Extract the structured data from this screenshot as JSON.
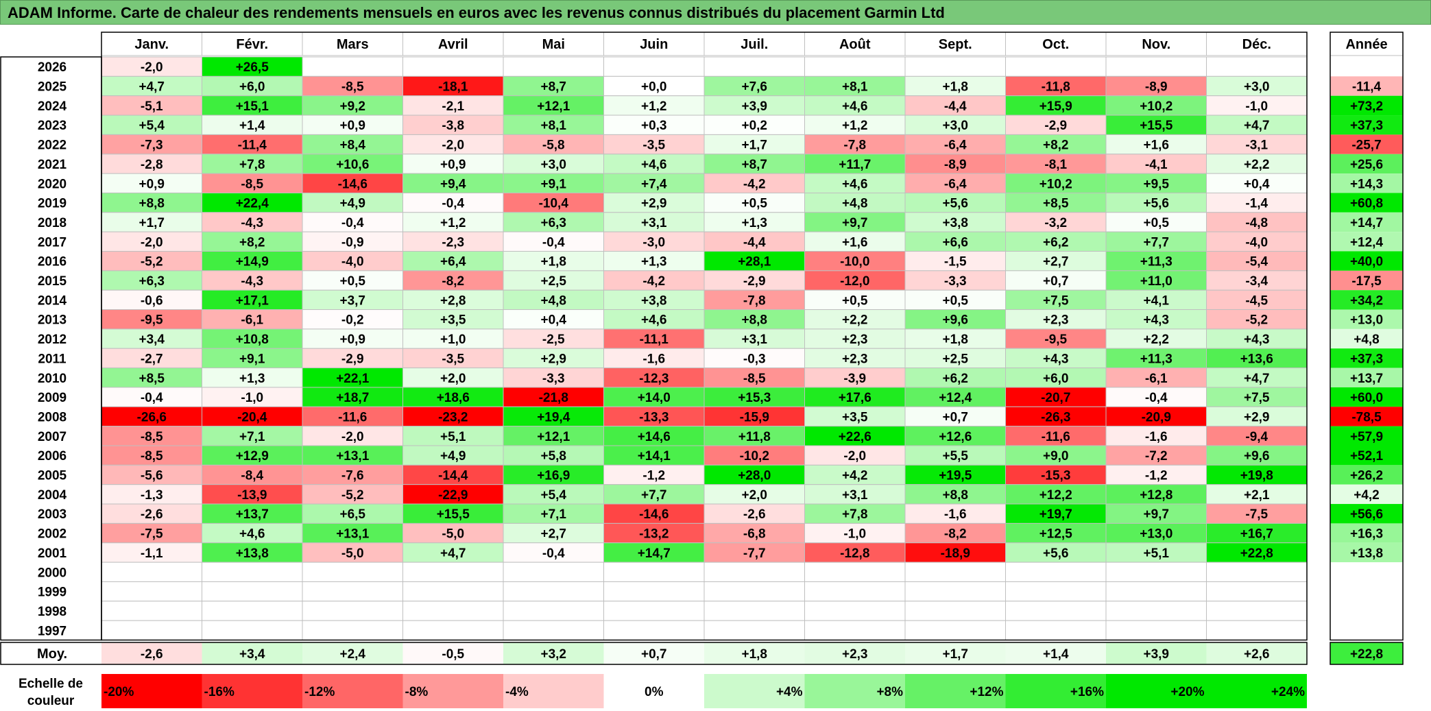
{
  "title": "ADAM Informe. Carte de chaleur des rendements mensuels en euros avec les revenus connus distribués du placement Garmin Ltd",
  "chart_data": {
    "type": "heatmap",
    "months": [
      "Janv.",
      "Févr.",
      "Mars",
      "Avril",
      "Mai",
      "Juin",
      "Juil.",
      "Août",
      "Sept.",
      "Oct.",
      "Nov.",
      "Déc."
    ],
    "year_column_label": "Année",
    "years": [
      "2026",
      "2025",
      "2024",
      "2023",
      "2022",
      "2021",
      "2020",
      "2019",
      "2018",
      "2017",
      "2016",
      "2015",
      "2014",
      "2013",
      "2012",
      "2011",
      "2010",
      "2009",
      "2008",
      "2007",
      "2006",
      "2005",
      "2004",
      "2003",
      "2002",
      "2001",
      "2000",
      "1999",
      "1998",
      "1997"
    ],
    "values": [
      [
        "-2,0",
        "+26,5",
        "",
        "",
        "",
        "",
        "",
        "",
        "",
        "",
        "",
        ""
      ],
      [
        "+4,7",
        "+6,0",
        "-8,5",
        "-18,1",
        "+8,7",
        "+0,0",
        "+7,6",
        "+8,1",
        "+1,8",
        "-11,8",
        "-8,9",
        "+3,0"
      ],
      [
        "-5,1",
        "+15,1",
        "+9,2",
        "-2,1",
        "+12,1",
        "+1,2",
        "+3,9",
        "+4,6",
        "-4,4",
        "+15,9",
        "+10,2",
        "-1,0"
      ],
      [
        "+5,4",
        "+1,4",
        "+0,9",
        "-3,8",
        "+8,1",
        "+0,3",
        "+0,2",
        "+1,2",
        "+3,0",
        "-2,9",
        "+15,5",
        "+4,7"
      ],
      [
        "-7,3",
        "-11,4",
        "+8,4",
        "-2,0",
        "-5,8",
        "-3,5",
        "+1,7",
        "-7,8",
        "-6,4",
        "+8,2",
        "+1,6",
        "-3,1"
      ],
      [
        "-2,8",
        "+7,8",
        "+10,6",
        "+0,9",
        "+3,0",
        "+4,6",
        "+8,7",
        "+11,7",
        "-8,9",
        "-8,1",
        "-4,1",
        "+2,2"
      ],
      [
        "+0,9",
        "-8,5",
        "-14,6",
        "+9,4",
        "+9,1",
        "+7,4",
        "-4,2",
        "+4,6",
        "-6,4",
        "+10,2",
        "+9,5",
        "+0,4"
      ],
      [
        "+8,8",
        "+22,4",
        "+4,9",
        "-0,4",
        "-10,4",
        "+2,9",
        "+0,5",
        "+4,8",
        "+5,6",
        "+8,5",
        "+5,6",
        "-1,4"
      ],
      [
        "+1,7",
        "-4,3",
        "-0,4",
        "+1,2",
        "+6,3",
        "+3,1",
        "+1,3",
        "+9,7",
        "+3,8",
        "-3,2",
        "+0,5",
        "-4,8"
      ],
      [
        "-2,0",
        "+8,2",
        "-0,9",
        "-2,3",
        "-0,4",
        "-3,0",
        "-4,4",
        "+1,6",
        "+6,6",
        "+6,2",
        "+7,7",
        "-4,0"
      ],
      [
        "-5,2",
        "+14,9",
        "-4,0",
        "+6,4",
        "+1,8",
        "+1,3",
        "+28,1",
        "-10,0",
        "-1,5",
        "+2,7",
        "+11,3",
        "-5,4"
      ],
      [
        "+6,3",
        "-4,3",
        "+0,5",
        "-8,2",
        "+2,5",
        "-4,2",
        "-2,9",
        "-12,0",
        "-3,3",
        "+0,7",
        "+11,0",
        "-3,4"
      ],
      [
        "-0,6",
        "+17,1",
        "+3,7",
        "+2,8",
        "+4,8",
        "+3,8",
        "-7,8",
        "+0,5",
        "+0,5",
        "+7,5",
        "+4,1",
        "-4,5"
      ],
      [
        "-9,5",
        "-6,1",
        "-0,2",
        "+3,5",
        "+0,4",
        "+4,6",
        "+8,8",
        "+2,2",
        "+9,6",
        "+2,3",
        "+4,3",
        "-5,2"
      ],
      [
        "+3,4",
        "+10,8",
        "+0,9",
        "+1,0",
        "-2,5",
        "-11,1",
        "+3,1",
        "+2,3",
        "+1,8",
        "-9,5",
        "+2,2",
        "+4,3"
      ],
      [
        "-2,7",
        "+9,1",
        "-2,9",
        "-3,5",
        "+2,9",
        "-1,6",
        "-0,3",
        "+2,3",
        "+2,5",
        "+4,3",
        "+11,3",
        "+13,6"
      ],
      [
        "+8,5",
        "+1,3",
        "+22,1",
        "+2,0",
        "-3,3",
        "-12,3",
        "-8,5",
        "-3,9",
        "+6,2",
        "+6,0",
        "-6,1",
        "+4,7"
      ],
      [
        "-0,4",
        "-1,0",
        "+18,7",
        "+18,6",
        "-21,8",
        "+14,0",
        "+15,3",
        "+17,6",
        "+12,4",
        "-20,7",
        "-0,4",
        "+7,5"
      ],
      [
        "-26,6",
        "-20,4",
        "-11,6",
        "-23,2",
        "+19,4",
        "-13,3",
        "-15,9",
        "+3,5",
        "+0,7",
        "-26,3",
        "-20,9",
        "+2,9"
      ],
      [
        "-8,5",
        "+7,1",
        "-2,0",
        "+5,1",
        "+12,1",
        "+14,6",
        "+11,8",
        "+22,6",
        "+12,6",
        "-11,6",
        "-1,6",
        "-9,4"
      ],
      [
        "-8,5",
        "+12,9",
        "+13,1",
        "+4,9",
        "+5,8",
        "+14,1",
        "-10,2",
        "-2,0",
        "+5,5",
        "+9,0",
        "-7,2",
        "+9,6"
      ],
      [
        "-5,6",
        "-8,4",
        "-7,6",
        "-14,4",
        "+16,9",
        "-1,2",
        "+28,0",
        "+4,2",
        "+19,5",
        "-15,3",
        "-1,2",
        "+19,8"
      ],
      [
        "-1,3",
        "-13,9",
        "-5,2",
        "-22,9",
        "+5,4",
        "+7,7",
        "+2,0",
        "+3,1",
        "+8,8",
        "+12,2",
        "+12,8",
        "+2,1"
      ],
      [
        "-2,6",
        "+13,7",
        "+6,5",
        "+15,5",
        "+7,1",
        "-14,6",
        "-2,6",
        "+7,8",
        "-1,6",
        "+19,7",
        "+9,7",
        "-7,5"
      ],
      [
        "-7,5",
        "+4,6",
        "+13,1",
        "-5,0",
        "+2,7",
        "-13,2",
        "-6,8",
        "-1,0",
        "-8,2",
        "+12,5",
        "+13,0",
        "+16,7"
      ],
      [
        "-1,1",
        "+13,8",
        "-5,0",
        "+4,7",
        "-0,4",
        "+14,7",
        "-7,7",
        "-12,8",
        "-18,9",
        "+5,6",
        "+5,1",
        "+22,8"
      ],
      [
        "",
        "",
        "",
        "",
        "",
        "",
        "",
        "",
        "",
        "",
        "",
        ""
      ],
      [
        "",
        "",
        "",
        "",
        "",
        "",
        "",
        "",
        "",
        "",
        "",
        ""
      ],
      [
        "",
        "",
        "",
        "",
        "",
        "",
        "",
        "",
        "",
        "",
        "",
        ""
      ],
      [
        "",
        "",
        "",
        "",
        "",
        "",
        "",
        "",
        "",
        "",
        "",
        ""
      ]
    ],
    "annual": [
      "",
      "-11,4",
      "+73,2",
      "+37,3",
      "-25,7",
      "+25,6",
      "+14,3",
      "+60,8",
      "+14,7",
      "+12,4",
      "+40,0",
      "-17,5",
      "+34,2",
      "+13,0",
      "+4,8",
      "+37,3",
      "+13,7",
      "+60,0",
      "-78,5",
      "+57,9",
      "+52,1",
      "+26,2",
      "+4,2",
      "+56,6",
      "+16,3",
      "+13,8",
      "",
      "",
      "",
      ""
    ],
    "average_label": "Moy.",
    "average": [
      "-2,6",
      "+3,4",
      "+2,4",
      "-0,5",
      "+3,2",
      "+0,7",
      "+1,8",
      "+2,3",
      "+1,7",
      "+1,4",
      "+3,9",
      "+2,6"
    ],
    "average_annual": "+22,8",
    "scale_label": [
      "Echelle de",
      "couleur"
    ],
    "scale": [
      "-20%",
      "-16%",
      "-12%",
      "-8%",
      "-4%",
      "0%",
      "+4%",
      "+8%",
      "+12%",
      "+16%",
      "+20%",
      "+24%"
    ],
    "scale_values": [
      -20,
      -16,
      -12,
      -8,
      -4,
      0,
      4,
      8,
      12,
      16,
      20,
      24
    ],
    "colors": {
      "negative": "#ff0000",
      "neutral": "#ffffff",
      "positive": "#00e800",
      "title_bg": "#79c879"
    }
  }
}
